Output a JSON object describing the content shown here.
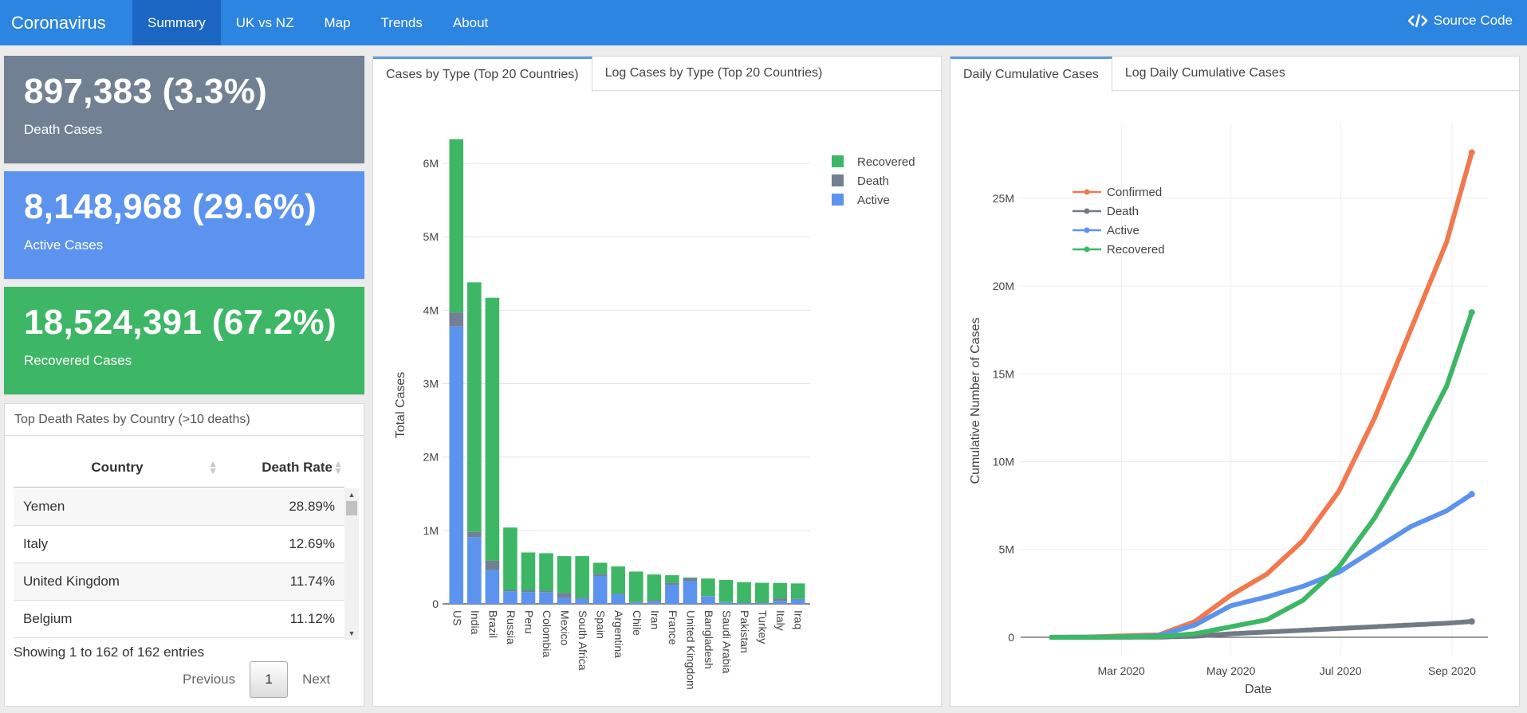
{
  "navbar": {
    "brand": "Coronavirus",
    "items": [
      "Summary",
      "UK vs NZ",
      "Map",
      "Trends",
      "About"
    ],
    "active": "Summary",
    "source_code": "Source Code"
  },
  "value_boxes": [
    {
      "value": "897,383 (3.3%)",
      "label": "Death Cases",
      "color": "#718093"
    },
    {
      "value": "8,148,968 (29.6%)",
      "label": "Active Cases",
      "color": "#5b93ee"
    },
    {
      "value": "18,524,391 (67.2%)",
      "label": "Recovered Cases",
      "color": "#3db765"
    }
  ],
  "death_table": {
    "title": "Top Death Rates by Country (>10 deaths)",
    "columns": [
      "Country",
      "Death Rate"
    ],
    "rows": [
      [
        "Yemen",
        "28.89%"
      ],
      [
        "Italy",
        "12.69%"
      ],
      [
        "United Kingdom",
        "11.74%"
      ],
      [
        "Belgium",
        "11.12%"
      ]
    ],
    "info": "Showing 1 to 162 of 162 entries",
    "previous": "Previous",
    "page": "1",
    "next": "Next"
  },
  "middle_panel": {
    "tabs": [
      "Cases by Type (Top 20 Countries)",
      "Log Cases by Type (Top 20 Countries)"
    ],
    "active_tab": 0
  },
  "right_panel": {
    "tabs": [
      "Daily Cumulative Cases",
      "Log Daily Cumulative Cases"
    ],
    "active_tab": 0
  },
  "chart_data": [
    {
      "type": "bar",
      "stacked": true,
      "ylabel": "Total Cases",
      "xlabel": "",
      "ylim": [
        0,
        6500000
      ],
      "yticks": [
        0,
        1000000,
        2000000,
        3000000,
        4000000,
        5000000,
        6000000
      ],
      "ytick_labels": [
        "0",
        "1M",
        "2M",
        "3M",
        "4M",
        "5M",
        "6M"
      ],
      "legend_position": "top-right",
      "categories": [
        "US",
        "India",
        "Brazil",
        "Russia",
        "Peru",
        "Colombia",
        "Mexico",
        "South Africa",
        "Spain",
        "Argentina",
        "Chile",
        "Iran",
        "France",
        "United Kingdom",
        "Bangladesh",
        "Saudi Arabia",
        "Pakistan",
        "Turkey",
        "Italy",
        "Iraq"
      ],
      "series": [
        {
          "name": "Active",
          "color": "#5b93ee",
          "values": [
            3780000,
            910000,
            460000,
            170000,
            160000,
            160000,
            80000,
            70000,
            380000,
            130000,
            20000,
            30000,
            260000,
            310000,
            100000,
            20000,
            10000,
            10000,
            40000,
            60000
          ]
        },
        {
          "name": "Death",
          "color": "#718093",
          "values": [
            190000,
            70000,
            130000,
            20000,
            30000,
            20000,
            70000,
            10000,
            30000,
            10000,
            10000,
            20000,
            30000,
            40000,
            5000,
            5000,
            6000,
            7000,
            35000,
            8000
          ]
        },
        {
          "name": "Recovered",
          "color": "#3db765",
          "values": [
            2360000,
            3400000,
            3580000,
            850000,
            510000,
            510000,
            500000,
            570000,
            150000,
            370000,
            410000,
            350000,
            100000,
            10000,
            240000,
            300000,
            280000,
            270000,
            210000,
            210000
          ]
        }
      ]
    },
    {
      "type": "line",
      "xlabel": "Date",
      "ylabel": "Cumulative Number of Cases",
      "ylim": [
        -1000000,
        29300000
      ],
      "yticks": [
        0,
        5000000,
        10000000,
        15000000,
        20000000,
        25000000
      ],
      "ytick_labels": [
        "0",
        "5M",
        "10M",
        "15M",
        "20M",
        "25M"
      ],
      "xticks": [
        "2020-03-01",
        "2020-05-01",
        "2020-07-01",
        "2020-09-01"
      ],
      "xtick_labels": [
        "Mar 2020",
        "May 2020",
        "Jul 2020",
        "Sep 2020"
      ],
      "xlim": [
        "2020-01-05",
        "2020-09-21"
      ],
      "legend_position": "top-left",
      "x_start": "2020-01-22",
      "x_end": "2020-09-12",
      "series": [
        {
          "name": "Confirmed",
          "color": "#f1794d",
          "values_millions": [
            0.0,
            0.01,
            0.08,
            0.14,
            0.9,
            2.4,
            3.6,
            5.5,
            8.3,
            12.5,
            17.5,
            22.5,
            27.6
          ]
        },
        {
          "name": "Death",
          "color": "#717b87",
          "values_millions": [
            0.0,
            0.0,
            0.003,
            0.01,
            0.06,
            0.2,
            0.3,
            0.4,
            0.5,
            0.6,
            0.7,
            0.8,
            0.9
          ]
        },
        {
          "name": "Active",
          "color": "#5b93ee",
          "values_millions": [
            0.0,
            0.01,
            0.03,
            0.1,
            0.7,
            1.8,
            2.3,
            2.9,
            3.7,
            5.0,
            6.3,
            7.2,
            8.15
          ]
        },
        {
          "name": "Recovered",
          "color": "#3db765",
          "values_millions": [
            0.0,
            0.0,
            0.03,
            0.04,
            0.2,
            0.6,
            1.0,
            2.1,
            4.0,
            6.8,
            10.3,
            14.3,
            18.5
          ]
        }
      ],
      "sample_dates": [
        "2020-01-22",
        "2020-02-11",
        "2020-03-02",
        "2020-03-22",
        "2020-04-11",
        "2020-05-01",
        "2020-05-21",
        "2020-06-10",
        "2020-06-30",
        "2020-07-20",
        "2020-08-09",
        "2020-08-29",
        "2020-09-12"
      ]
    }
  ]
}
